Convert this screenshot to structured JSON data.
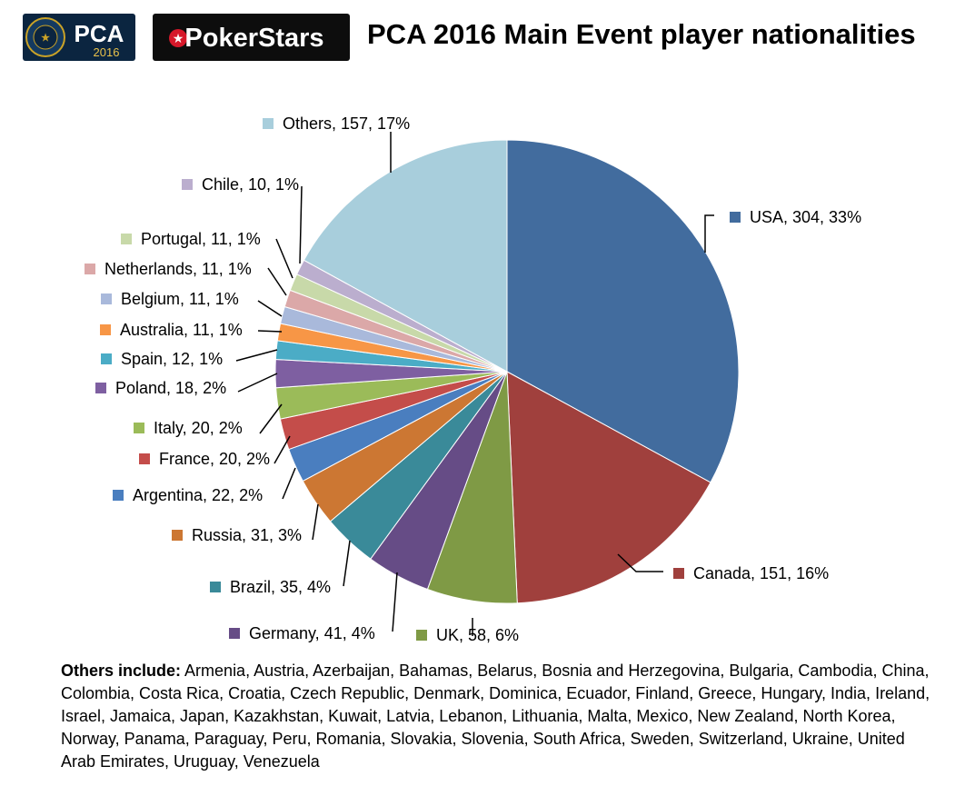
{
  "header": {
    "logo_pca_text": "PCA",
    "logo_pca_year": "2016",
    "logo_pca_ring": "ADVENTURE • POKERSTARS CARIBBEAN",
    "logo_ps_text": "PokerStars",
    "colors": {
      "pca_bg": "#0b2540",
      "ps_bg": "#0d0d0d",
      "ps_red": "#d6182a"
    }
  },
  "chart_data": {
    "type": "pie",
    "title": "PCA 2016 Main Event player nationalities",
    "label_format": "{name}, {value}, {pct}%",
    "slices": [
      {
        "name": "USA",
        "value": 304,
        "pct": 33,
        "color": "#426C9E"
      },
      {
        "name": "Canada",
        "value": 151,
        "pct": 16,
        "color": "#A0403D"
      },
      {
        "name": "UK",
        "value": 58,
        "pct": 6,
        "color": "#7F9A45"
      },
      {
        "name": "Germany",
        "value": 41,
        "pct": 4,
        "color": "#664C86"
      },
      {
        "name": "Brazil",
        "value": 35,
        "pct": 4,
        "color": "#3A8A99"
      },
      {
        "name": "Russia",
        "value": 31,
        "pct": 3,
        "color": "#CC7733"
      },
      {
        "name": "Argentina",
        "value": 22,
        "pct": 2,
        "color": "#4A7EBF"
      },
      {
        "name": "France",
        "value": 20,
        "pct": 2,
        "color": "#C44D4A"
      },
      {
        "name": "Italy",
        "value": 20,
        "pct": 2,
        "color": "#9BBB59"
      },
      {
        "name": "Poland",
        "value": 18,
        "pct": 2,
        "color": "#7E5FA1"
      },
      {
        "name": "Spain",
        "value": 12,
        "pct": 1,
        "color": "#4BACC6"
      },
      {
        "name": "Australia",
        "value": 11,
        "pct": 1,
        "color": "#F79646"
      },
      {
        "name": "Belgium",
        "value": 11,
        "pct": 1,
        "color": "#A9B9DB"
      },
      {
        "name": "Netherlands",
        "value": 11,
        "pct": 1,
        "color": "#DBA8A8"
      },
      {
        "name": "Portugal",
        "value": 11,
        "pct": 1,
        "color": "#C8D9A9"
      },
      {
        "name": "Chile",
        "value": 10,
        "pct": 1,
        "color": "#BBAECE"
      },
      {
        "name": "Others",
        "value": 157,
        "pct": 17,
        "color": "#A8CEDC"
      }
    ]
  },
  "others_note": {
    "label": "Others include:",
    "text": "Armenia, Austria, Azerbaijan, Bahamas, Belarus, Bosnia and Herzegovina, Bulgaria, Cambodia, China, Colombia, Costa Rica, Croatia, Czech Republic, Denmark, Dominica, Ecuador, Finland, Greece, Hungary, India, Ireland, Israel, Jamaica, Japan, Kazakhstan, Kuwait, Latvia, Lebanon, Lithuania, Malta, Mexico, New Zealand, North Korea, Norway, Panama, Paraguay, Peru, Romania, Slovakia, Slovenia, South Africa, Sweden, Switzerland, Ukraine, United Arab Emirates, Uruguay, Venezuela"
  }
}
